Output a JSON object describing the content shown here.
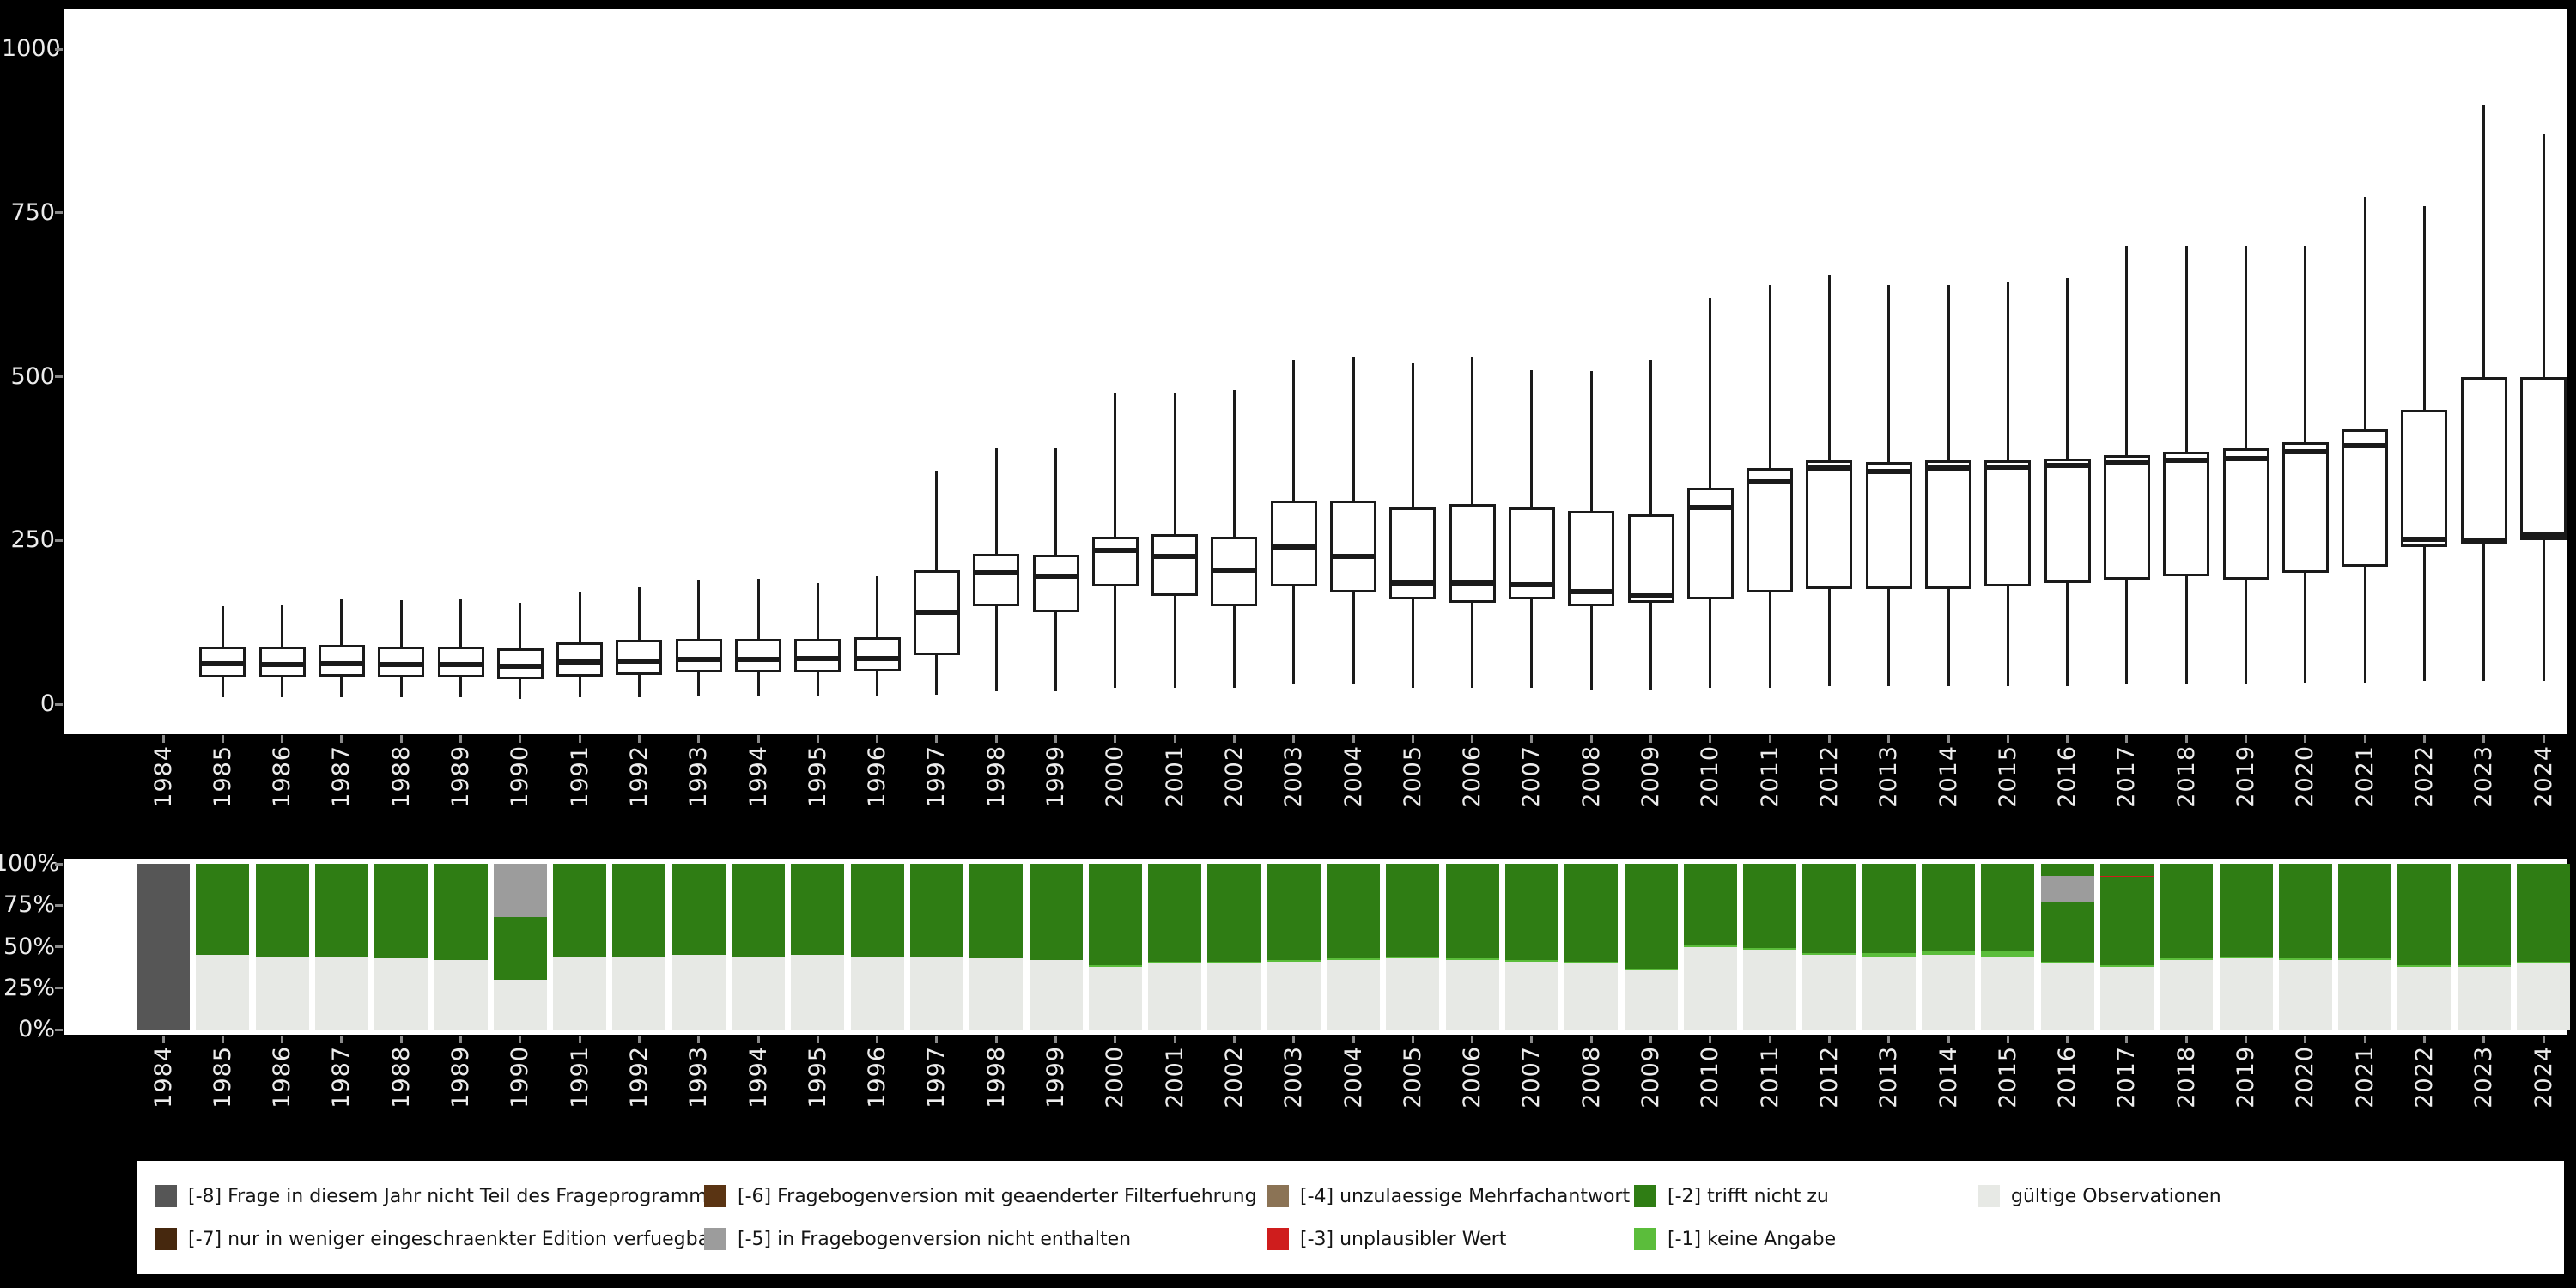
{
  "years": [
    "1984",
    "1985",
    "1986",
    "1987",
    "1988",
    "1989",
    "1990",
    "1991",
    "1992",
    "1993",
    "1994",
    "1995",
    "1996",
    "1997",
    "1998",
    "1999",
    "2000",
    "2001",
    "2002",
    "2003",
    "2004",
    "2005",
    "2006",
    "2007",
    "2008",
    "2009",
    "2010",
    "2011",
    "2012",
    "2013",
    "2014",
    "2015",
    "2016",
    "2017",
    "2018",
    "2019",
    "2020",
    "2021",
    "2022",
    "2023",
    "2024"
  ],
  "boxplot_panel": {
    "y_ticks": [
      "1000",
      "750",
      "500",
      "250",
      "0"
    ]
  },
  "bar_panel": {
    "y_ticks": [
      "100%",
      "75%",
      "50%",
      "25%",
      "0%"
    ]
  },
  "colors": {
    "-8": "#565656",
    "-7": "#46280e",
    "-6": "#5a3413",
    "-5": "#9c9c9c",
    "-4": "#8b7355",
    "-3": "#cf1d1d",
    "-2": "#2f7d14",
    "-1": "#5bbd3b",
    "valid": "#e7e9e5",
    "box_stroke": "#1a1a1a",
    "panel_bg": "#ffffff",
    "page_bg": "#000000",
    "axis_text": "#ececec",
    "tick_mark": "#8a8a8a"
  },
  "legend": {
    "rows": [
      [
        {
          "id": "-8",
          "label": "[-8] Frage in diesem Jahr nicht Teil des Frageprogramms"
        },
        {
          "id": "-6",
          "label": "[-6] Fragebogenversion mit geaenderter Filterfuehrung"
        },
        {
          "id": "-4",
          "label": "[-4] unzulaessige Mehrfachantwort"
        },
        {
          "id": "-2",
          "label": "[-2] trifft nicht zu"
        },
        {
          "id": "valid",
          "label": "gültige Observationen"
        }
      ],
      [
        {
          "id": "-7",
          "label": "[-7] nur in weniger eingeschraenkter Edition verfuegbar"
        },
        {
          "id": "-5",
          "label": "[-5] in Fragebogenversion nicht enthalten"
        },
        {
          "id": "-3",
          "label": "[-3] unplausibler Wert"
        },
        {
          "id": "-1",
          "label": "[-1] keine Angabe"
        }
      ]
    ]
  },
  "chart_data": [
    {
      "type": "boxplot",
      "title": "",
      "xlabel": "",
      "ylabel": "",
      "ylim": [
        0,
        1000
      ],
      "yticks": [
        0,
        250,
        500,
        750,
        1000
      ],
      "grid": false,
      "note": "stats = [whisker_low, q1, median, q3, whisker_high]; 1984 has no data",
      "boxes": [
        {
          "year": "1984",
          "stats": null
        },
        {
          "year": "1985",
          "stats": [
            10,
            40,
            62,
            88,
            150
          ]
        },
        {
          "year": "1986",
          "stats": [
            10,
            40,
            60,
            88,
            152
          ]
        },
        {
          "year": "1987",
          "stats": [
            10,
            42,
            62,
            90,
            160
          ]
        },
        {
          "year": "1988",
          "stats": [
            10,
            40,
            60,
            88,
            158
          ]
        },
        {
          "year": "1989",
          "stats": [
            10,
            40,
            60,
            88,
            160
          ]
        },
        {
          "year": "1990",
          "stats": [
            8,
            38,
            58,
            85,
            155
          ]
        },
        {
          "year": "1991",
          "stats": [
            10,
            42,
            64,
            95,
            172
          ]
        },
        {
          "year": "1992",
          "stats": [
            10,
            45,
            66,
            98,
            178
          ]
        },
        {
          "year": "1993",
          "stats": [
            12,
            48,
            68,
            100,
            190
          ]
        },
        {
          "year": "1994",
          "stats": [
            12,
            48,
            68,
            100,
            192
          ]
        },
        {
          "year": "1995",
          "stats": [
            12,
            48,
            70,
            100,
            185
          ]
        },
        {
          "year": "1996",
          "stats": [
            12,
            50,
            70,
            102,
            195
          ]
        },
        {
          "year": "1997",
          "stats": [
            15,
            75,
            140,
            205,
            355
          ]
        },
        {
          "year": "1998",
          "stats": [
            20,
            150,
            200,
            230,
            390
          ]
        },
        {
          "year": "1999",
          "stats": [
            20,
            140,
            195,
            228,
            390
          ]
        },
        {
          "year": "2000",
          "stats": [
            25,
            180,
            235,
            255,
            475
          ]
        },
        {
          "year": "2001",
          "stats": [
            25,
            165,
            225,
            260,
            475
          ]
        },
        {
          "year": "2002",
          "stats": [
            25,
            150,
            205,
            255,
            480
          ]
        },
        {
          "year": "2003",
          "stats": [
            30,
            180,
            240,
            310,
            525
          ]
        },
        {
          "year": "2004",
          "stats": [
            30,
            170,
            225,
            310,
            530
          ]
        },
        {
          "year": "2005",
          "stats": [
            25,
            160,
            185,
            300,
            520
          ]
        },
        {
          "year": "2006",
          "stats": [
            25,
            155,
            185,
            305,
            530
          ]
        },
        {
          "year": "2007",
          "stats": [
            25,
            160,
            182,
            300,
            510
          ]
        },
        {
          "year": "2008",
          "stats": [
            22,
            150,
            172,
            295,
            508
          ]
        },
        {
          "year": "2009",
          "stats": [
            22,
            155,
            165,
            290,
            525
          ]
        },
        {
          "year": "2010",
          "stats": [
            25,
            160,
            300,
            330,
            620
          ]
        },
        {
          "year": "2011",
          "stats": [
            25,
            170,
            340,
            360,
            640
          ]
        },
        {
          "year": "2012",
          "stats": [
            28,
            175,
            360,
            372,
            655
          ]
        },
        {
          "year": "2013",
          "stats": [
            28,
            175,
            355,
            370,
            640
          ]
        },
        {
          "year": "2014",
          "stats": [
            28,
            175,
            360,
            372,
            640
          ]
        },
        {
          "year": "2015",
          "stats": [
            28,
            180,
            362,
            372,
            645
          ]
        },
        {
          "year": "2016",
          "stats": [
            28,
            185,
            365,
            375,
            650
          ]
        },
        {
          "year": "2017",
          "stats": [
            30,
            190,
            368,
            380,
            700
          ]
        },
        {
          "year": "2018",
          "stats": [
            30,
            195,
            372,
            385,
            700
          ]
        },
        {
          "year": "2019",
          "stats": [
            30,
            190,
            375,
            390,
            700
          ]
        },
        {
          "year": "2020",
          "stats": [
            32,
            200,
            385,
            400,
            700
          ]
        },
        {
          "year": "2021",
          "stats": [
            32,
            210,
            395,
            420,
            775
          ]
        },
        {
          "year": "2022",
          "stats": [
            35,
            240,
            252,
            450,
            760
          ]
        },
        {
          "year": "2023",
          "stats": [
            35,
            245,
            250,
            500,
            915
          ]
        },
        {
          "year": "2024",
          "stats": [
            35,
            250,
            258,
            500,
            870
          ]
        }
      ]
    },
    {
      "type": "bar",
      "stacked": true,
      "unit": "percent",
      "ylim": [
        0,
        100
      ],
      "yticks": [
        0,
        25,
        50,
        75,
        100
      ],
      "categories": [
        "1984",
        "1985",
        "1986",
        "1987",
        "1988",
        "1989",
        "1990",
        "1991",
        "1992",
        "1993",
        "1994",
        "1995",
        "1996",
        "1997",
        "1998",
        "1999",
        "2000",
        "2001",
        "2002",
        "2003",
        "2004",
        "2005",
        "2006",
        "2007",
        "2008",
        "2009",
        "2010",
        "2011",
        "2012",
        "2013",
        "2014",
        "2015",
        "2016",
        "2017",
        "2018",
        "2019",
        "2020",
        "2021",
        "2022",
        "2023",
        "2024"
      ],
      "series": [
        {
          "id": "valid",
          "name": "gültige Observationen",
          "values": [
            0,
            45,
            44,
            44,
            43,
            42,
            30,
            44,
            44,
            45,
            44,
            45,
            44,
            44,
            43,
            42,
            38,
            40,
            40,
            41,
            42,
            43,
            42,
            41,
            40,
            36,
            50,
            48,
            45,
            44,
            45,
            44,
            40,
            38,
            42,
            43,
            42,
            42,
            38,
            38,
            40
          ]
        },
        {
          "id": "-1",
          "name": "[-1] keine Angabe",
          "values": [
            0,
            0,
            0,
            0,
            0,
            0,
            0,
            0,
            0,
            0,
            0,
            0,
            0,
            0,
            0,
            0,
            1,
            1,
            1,
            1,
            1,
            1,
            1,
            1,
            1,
            1,
            1,
            1,
            1,
            2,
            2,
            3,
            1,
            1,
            1,
            1,
            1,
            1,
            1,
            1,
            1
          ]
        },
        {
          "id": "-2",
          "name": "[-2] trifft nicht zu",
          "values": [
            0,
            55,
            56,
            56,
            57,
            58,
            38,
            56,
            56,
            55,
            56,
            55,
            56,
            56,
            57,
            58,
            61,
            59,
            59,
            58,
            57,
            56,
            57,
            58,
            59,
            63,
            49,
            51,
            54,
            54,
            53,
            53,
            43,
            60,
            57,
            56,
            57,
            57,
            61,
            61,
            59
          ]
        },
        {
          "id": "-3",
          "name": "[-3] unplausibler Wert",
          "values": [
            0,
            0,
            0,
            0,
            0,
            0,
            0,
            0,
            0,
            0,
            0,
            0,
            0,
            0,
            0,
            0,
            0,
            0,
            0,
            0,
            0,
            0,
            0,
            0,
            0,
            0,
            0,
            0,
            0,
            0,
            0,
            0,
            0,
            1,
            0,
            0,
            0,
            0,
            0,
            0,
            0
          ]
        },
        {
          "id": "-4",
          "name": "[-4] unzulaessige Mehrfachantwort",
          "values": [
            0,
            0,
            0,
            0,
            0,
            0,
            0,
            0,
            0,
            0,
            0,
            0,
            0,
            0,
            0,
            0,
            0,
            0,
            0,
            0,
            0,
            0,
            0,
            0,
            0,
            0,
            0,
            0,
            0,
            0,
            0,
            0,
            0,
            0,
            0,
            0,
            0,
            0,
            0,
            0,
            0
          ]
        },
        {
          "id": "-5",
          "name": "[-5] in Fragebogenversion nicht enthalten",
          "values": [
            0,
            0,
            0,
            0,
            0,
            0,
            32,
            0,
            0,
            0,
            0,
            0,
            0,
            0,
            0,
            0,
            0,
            0,
            0,
            0,
            0,
            0,
            0,
            0,
            0,
            0,
            0,
            0,
            0,
            0,
            0,
            0,
            16,
            0,
            0,
            0,
            0,
            0,
            0,
            0,
            0
          ]
        },
        {
          "id": "-6",
          "name": "[-6] Fragebogenversion mit geaenderter Filterfuehrung",
          "values": [
            0,
            0,
            0,
            0,
            0,
            0,
            0,
            0,
            0,
            0,
            0,
            0,
            0,
            0,
            0,
            0,
            0,
            0,
            0,
            0,
            0,
            0,
            0,
            0,
            0,
            0,
            0,
            0,
            0,
            0,
            0,
            0,
            0,
            0,
            0,
            0,
            0,
            0,
            0,
            0,
            0
          ]
        },
        {
          "id": "-7",
          "name": "[-7] nur in weniger eingeschraenkter Edition verfuegbar",
          "values": [
            0,
            0,
            0,
            0,
            0,
            0,
            0,
            0,
            0,
            0,
            0,
            0,
            0,
            0,
            0,
            0,
            0,
            0,
            0,
            0,
            0,
            0,
            0,
            0,
            0,
            0,
            0,
            0,
            0,
            0,
            0,
            0,
            0,
            0,
            0,
            0,
            0,
            0,
            0,
            0,
            0
          ]
        },
        {
          "id": "-8",
          "name": "[-8] Frage in diesem Jahr nicht Teil des Frageprogramms",
          "values": [
            100,
            0,
            0,
            0,
            0,
            0,
            0,
            0,
            0,
            0,
            0,
            0,
            0,
            0,
            0,
            0,
            0,
            0,
            0,
            0,
            0,
            0,
            0,
            0,
            0,
            0,
            0,
            0,
            0,
            0,
            0,
            0,
            0,
            0,
            0,
            0,
            0,
            0,
            0,
            0,
            0
          ]
        }
      ],
      "stack_overrides": {
        "2016": [
          [
            "valid",
            40
          ],
          [
            "-1",
            1
          ],
          [
            "-2",
            36
          ],
          [
            "-5",
            16
          ],
          [
            "-2",
            7
          ]
        ],
        "2017": [
          [
            "valid",
            38
          ],
          [
            "-1",
            1
          ],
          [
            "-2",
            53
          ],
          [
            "-3",
            1
          ],
          [
            "-2",
            7
          ]
        ]
      }
    }
  ]
}
